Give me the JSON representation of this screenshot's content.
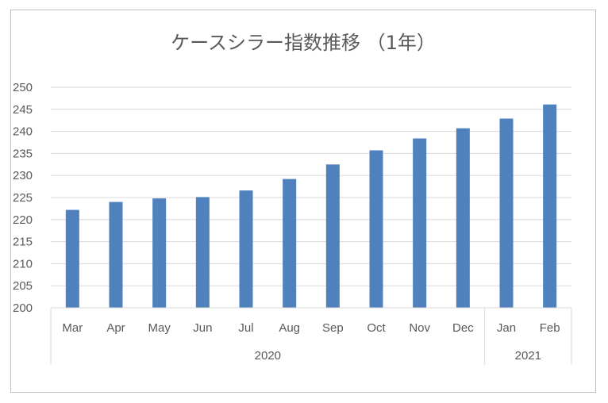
{
  "chart_data": {
    "type": "bar",
    "title": "ケースシラー指数推移 （1年）",
    "categories": [
      "Mar",
      "Apr",
      "May",
      "Jun",
      "Jul",
      "Aug",
      "Sep",
      "Oct",
      "Nov",
      "Dec",
      "Jan",
      "Feb"
    ],
    "groups": [
      {
        "label": "2020",
        "categories": [
          "Mar",
          "Apr",
          "May",
          "Jun",
          "Jul",
          "Aug",
          "Sep",
          "Oct",
          "Nov",
          "Dec"
        ]
      },
      {
        "label": "2021",
        "categories": [
          "Jan",
          "Feb"
        ]
      }
    ],
    "values": [
      222.2,
      224.0,
      224.8,
      225.1,
      226.6,
      229.2,
      232.5,
      235.7,
      238.4,
      240.7,
      242.9,
      246.1
    ],
    "ylim": [
      200,
      250
    ],
    "yticks": [
      "200",
      "205",
      "210",
      "215",
      "220",
      "225",
      "230",
      "235",
      "240",
      "245",
      "250"
    ],
    "xlabel": "",
    "ylabel": "",
    "grid": true,
    "legend": "none",
    "bar_color": "#4f81bd"
  }
}
